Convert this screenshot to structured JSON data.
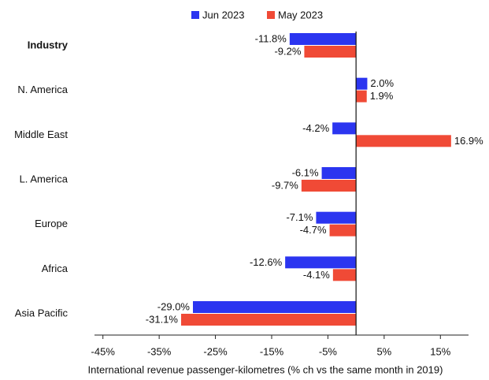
{
  "chart_data": {
    "type": "hbar",
    "x_label": "International revenue passenger-kilometres (% ch vs the same month in 2019)",
    "categories": [
      "Industry",
      "N. America",
      "Middle East",
      "L. America",
      "Europe",
      "Africa",
      "Asia Pacific"
    ],
    "series": [
      {
        "name": "Jun 2023",
        "color": "#2b35f0",
        "values": [
          -11.8,
          2.0,
          -4.2,
          -6.1,
          -7.1,
          -12.6,
          -29.0
        ],
        "value_labels": [
          "-11.8%",
          "2.0%",
          "-4.2%",
          "-6.1%",
          "-7.1%",
          "-12.6%",
          "-29.0%"
        ]
      },
      {
        "name": "May 2023",
        "color": "#f04a36",
        "values": [
          -9.2,
          1.9,
          16.9,
          -9.7,
          -4.7,
          -4.1,
          -31.1
        ],
        "value_labels": [
          "-9.2%",
          "1.9%",
          "16.9%",
          "-9.7%",
          "-4.7%",
          "-4.1%",
          "-31.1%"
        ]
      }
    ],
    "xlim": [
      -46.5,
      20
    ],
    "xticks": [
      {
        "value": -45,
        "label": "-45%"
      },
      {
        "value": -35,
        "label": "-35%"
      },
      {
        "value": -25,
        "label": "-25%"
      },
      {
        "value": -15,
        "label": "-15%"
      },
      {
        "value": -5,
        "label": "-5%"
      },
      {
        "value": 5,
        "label": "5%"
      },
      {
        "value": 15,
        "label": "15%"
      }
    ],
    "legend": "top"
  }
}
